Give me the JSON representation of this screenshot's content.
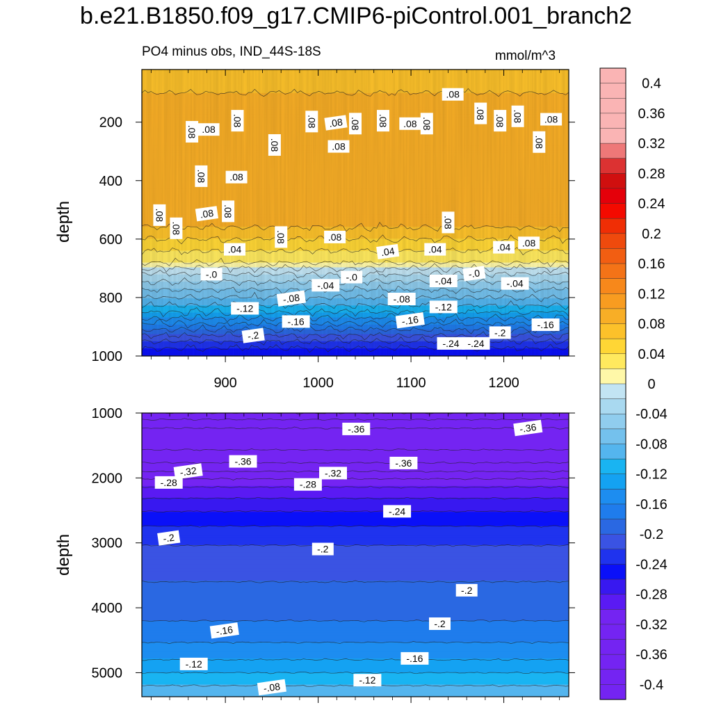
{
  "title": "b.e21.B1850.f09_g17.CMIP6-piControl.001_branch2",
  "subtitle_left": "PO4 minus obs, IND_44S-18S",
  "subtitle_right": "mmol/m^3",
  "colors": {
    "positive": [
      "#fff8a8",
      "#ffe95e",
      "#ffd635",
      "#fcc12a",
      "#f8ae26",
      "#f89c20",
      "#f7881b",
      "#f47317",
      "#f25e12",
      "#ef4a0d",
      "#f02e05",
      "#f40a00",
      "#e4000a",
      "#d00f0f",
      "#dc3232",
      "#ee7878",
      "#fab4b4"
    ],
    "negative": [
      "#c2e4f3",
      "#a9d9f0",
      "#90cdee",
      "#74c1ed",
      "#54b5ee",
      "#19b4f2",
      "#14a2f2",
      "#1d8df0",
      "#1f7cec",
      "#2a68e2",
      "#3a53e3",
      "#1f33ee",
      "#0a10f8",
      "#3818f0",
      "#5a1af3",
      "#7424f2"
    ]
  },
  "chart_data": [
    {
      "type": "contour",
      "panel": "upper",
      "xlim": [
        810,
        1270
      ],
      "ylim": [
        1000,
        20
      ],
      "x_ticks": [
        900,
        1000,
        1100,
        1200
      ],
      "x_tick_labels": [
        "900",
        "1000",
        "1100",
        "1200"
      ],
      "y_ticks": [
        200,
        400,
        600,
        800,
        1000
      ],
      "y_tick_labels": [
        "200",
        "400",
        "600",
        "800",
        "1000"
      ],
      "ylabel": "depth",
      "depth_profile": {
        "depth": [
          20,
          100,
          200,
          300,
          400,
          500,
          560,
          600,
          640,
          680,
          720,
          760,
          800,
          840,
          880,
          920,
          960,
          1000
        ],
        "value": [
          0.07,
          0.08,
          0.09,
          0.095,
          0.095,
          0.09,
          0.08,
          0.06,
          0.04,
          0.02,
          -0.02,
          -0.05,
          -0.08,
          -0.11,
          -0.15,
          -0.19,
          -0.23,
          -0.26
        ]
      },
      "contour_labels": [
        {
          "text": ".08",
          "x": 1145,
          "depth": 105
        },
        {
          "text": ".08",
          "x": 1175,
          "depth": 170
        },
        {
          "text": ".08",
          "x": 1215,
          "depth": 180
        },
        {
          "text": ".08",
          "x": 1251,
          "depth": 190
        },
        {
          "text": ".08",
          "x": 1196,
          "depth": 195
        },
        {
          "text": ".08",
          "x": 1070,
          "depth": 195
        },
        {
          "text": ".08",
          "x": 1099,
          "depth": 205
        },
        {
          "text": ".08",
          "x": 1117,
          "depth": 205
        },
        {
          "text": ".08",
          "x": 1040,
          "depth": 205
        },
        {
          "text": ".08",
          "x": 1019,
          "depth": 202
        },
        {
          "text": ".08",
          "x": 993,
          "depth": 198
        },
        {
          "text": ".08",
          "x": 913,
          "depth": 195
        },
        {
          "text": ".08",
          "x": 882,
          "depth": 225
        },
        {
          "text": ".08",
          "x": 864,
          "depth": 233
        },
        {
          "text": ".08",
          "x": 1238,
          "depth": 268
        },
        {
          "text": ".08",
          "x": 1022,
          "depth": 283
        },
        {
          "text": ".08",
          "x": 953,
          "depth": 278
        },
        {
          "text": ".08",
          "x": 874,
          "depth": 385
        },
        {
          "text": ".08",
          "x": 912,
          "depth": 388
        },
        {
          "text": ".08",
          "x": 829,
          "depth": 518
        },
        {
          "text": ".08",
          "x": 903,
          "depth": 505
        },
        {
          "text": ".08",
          "x": 880,
          "depth": 513
        },
        {
          "text": ".08",
          "x": 847,
          "depth": 563
        },
        {
          "text": ".08",
          "x": 1140,
          "depth": 543
        },
        {
          "text": ".08",
          "x": 1018,
          "depth": 593
        },
        {
          "text": ".08",
          "x": 960,
          "depth": 593
        },
        {
          "text": ".08",
          "x": 1227,
          "depth": 613
        },
        {
          "text": ".04",
          "x": 1200,
          "depth": 628
        },
        {
          "text": ".04",
          "x": 1126,
          "depth": 635
        },
        {
          "text": ".04",
          "x": 1075,
          "depth": 643
        },
        {
          "text": ".04",
          "x": 910,
          "depth": 635
        },
        {
          "text": "-.0",
          "x": 885,
          "depth": 720
        },
        {
          "text": "-.0",
          "x": 1036,
          "depth": 730
        },
        {
          "text": "-.0",
          "x": 1168,
          "depth": 718
        },
        {
          "text": "-.04",
          "x": 1008,
          "depth": 758
        },
        {
          "text": "-.04",
          "x": 1135,
          "depth": 743
        },
        {
          "text": "-.04",
          "x": 1212,
          "depth": 752
        },
        {
          "text": "-.08",
          "x": 971,
          "depth": 803
        },
        {
          "text": "-.08",
          "x": 1090,
          "depth": 805
        },
        {
          "text": "-.12",
          "x": 1135,
          "depth": 832
        },
        {
          "text": "-.12",
          "x": 921,
          "depth": 837
        },
        {
          "text": "-.16",
          "x": 1099,
          "depth": 878
        },
        {
          "text": "-.16",
          "x": 976,
          "depth": 882
        },
        {
          "text": "-.16",
          "x": 1245,
          "depth": 893
        },
        {
          "text": "-.2",
          "x": 1196,
          "depth": 920
        },
        {
          "text": "-.2",
          "x": 930,
          "depth": 930
        },
        {
          "text": "-.24",
          "x": 1143,
          "depth": 957
        },
        {
          "text": "-.24",
          "x": 1170,
          "depth": 957
        }
      ]
    },
    {
      "type": "contour",
      "panel": "lower",
      "xlim": [
        810,
        1270
      ],
      "ylim": [
        5370,
        1000
      ],
      "x_ticks": [
        900,
        1000,
        1100,
        1200
      ],
      "y_ticks": [
        1000,
        2000,
        3000,
        4000,
        5000
      ],
      "y_tick_labels": [
        "1000",
        "2000",
        "3000",
        "4000",
        "5000"
      ],
      "ylabel": "depth",
      "depth_profile": {
        "depth": [
          1000,
          1100,
          1300,
          1500,
          1700,
          1900,
          2100,
          2400,
          2800,
          3200,
          3600,
          4000,
          4400,
          4800,
          5000,
          5200,
          5370
        ],
        "value": [
          -0.34,
          -0.36,
          -0.39,
          -0.385,
          -0.37,
          -0.34,
          -0.305,
          -0.27,
          -0.235,
          -0.21,
          -0.2,
          -0.19,
          -0.17,
          -0.14,
          -0.12,
          -0.1,
          -0.08
        ]
      },
      "contour_labels": [
        {
          "text": "-.36",
          "x": 1041,
          "depth": 1245
        },
        {
          "text": "-.36",
          "x": 1226,
          "depth": 1230
        },
        {
          "text": "-.36",
          "x": 919,
          "depth": 1745
        },
        {
          "text": "-.36",
          "x": 1092,
          "depth": 1770
        },
        {
          "text": "-.32",
          "x": 1016,
          "depth": 1925
        },
        {
          "text": "-.32",
          "x": 860,
          "depth": 1900
        },
        {
          "text": "-.28",
          "x": 839,
          "depth": 2070
        },
        {
          "text": "-.28",
          "x": 989,
          "depth": 2100
        },
        {
          "text": "-.24",
          "x": 1085,
          "depth": 2515
        },
        {
          "text": "-.2",
          "x": 839,
          "depth": 2925
        },
        {
          "text": "-.2",
          "x": 1005,
          "depth": 3095
        },
        {
          "text": "-.2",
          "x": 1160,
          "depth": 3730
        },
        {
          "text": "-.2",
          "x": 1131,
          "depth": 4245
        },
        {
          "text": "-.16",
          "x": 899,
          "depth": 4350
        },
        {
          "text": "-.16",
          "x": 1104,
          "depth": 4780
        },
        {
          "text": "-.12",
          "x": 866,
          "depth": 4865
        },
        {
          "text": "-.12",
          "x": 1053,
          "depth": 5115
        },
        {
          "text": "-.08",
          "x": 950,
          "depth": 5225
        }
      ]
    },
    {
      "type": "colorbar",
      "levels": [
        -0.42,
        -0.4,
        -0.38,
        -0.36,
        -0.34,
        -0.32,
        -0.3,
        -0.28,
        -0.26,
        -0.24,
        -0.22,
        -0.2,
        -0.18,
        -0.16,
        -0.14,
        -0.12,
        -0.1,
        -0.08,
        -0.06,
        -0.04,
        -0.02,
        0,
        0.02,
        0.04,
        0.06,
        0.08,
        0.1,
        0.12,
        0.14,
        0.16,
        0.18,
        0.2,
        0.22,
        0.24,
        0.26,
        0.28,
        0.3,
        0.32,
        0.34,
        0.36,
        0.38,
        0.4,
        0.42
      ],
      "tick_labels": [
        "0.4",
        "0.36",
        "0.32",
        "0.28",
        "0.24",
        "0.2",
        "0.16",
        "0.12",
        "0.08",
        "0.04",
        "0",
        "-0.04",
        "-0.08",
        "-0.12",
        "-0.16",
        "-0.2",
        "-0.24",
        "-0.28",
        "-0.32",
        "-0.36",
        "-0.4"
      ],
      "tick_values": [
        0.4,
        0.36,
        0.32,
        0.28,
        0.24,
        0.2,
        0.16,
        0.12,
        0.08,
        0.04,
        0,
        -0.04,
        -0.08,
        -0.12,
        -0.16,
        -0.2,
        -0.24,
        -0.28,
        -0.32,
        -0.36,
        -0.4
      ]
    }
  ]
}
